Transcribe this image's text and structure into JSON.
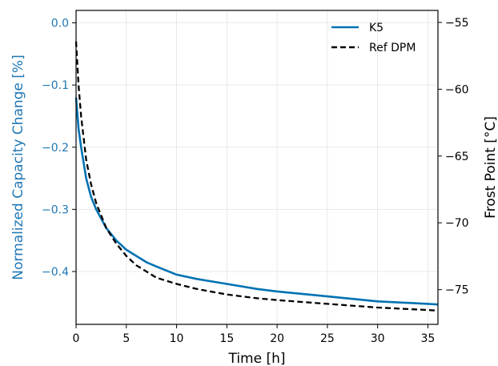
{
  "chart_data": {
    "type": "line",
    "xlabel": "Time [h]",
    "ylabel_left": "Normalized Capacity Change [%]",
    "ylabel_right": "Frost Point [°C]",
    "xlim": [
      0,
      36
    ],
    "ylim_left": [
      -0.485,
      0.02
    ],
    "ylim_right": [
      -77.6,
      -54.1
    ],
    "x_ticks": [
      0,
      5,
      10,
      15,
      20,
      25,
      30,
      35
    ],
    "y_left_ticks": [
      0.0,
      -0.1,
      -0.2,
      -0.3,
      -0.4
    ],
    "y_right_ticks": [
      -55,
      -60,
      -65,
      -70,
      -75
    ],
    "grid": true,
    "legend_position": "top-right",
    "colors": {
      "left_axis": "#1f77b4",
      "k5": "#0072b2",
      "ref": "#000000"
    },
    "series": [
      {
        "name": "K5",
        "axis": "left",
        "style": "solid",
        "x": [
          0,
          0.25,
          0.5,
          1,
          1.5,
          2,
          3,
          4,
          5,
          6,
          7,
          8,
          10,
          12,
          15,
          18,
          20,
          25,
          30,
          35,
          36
        ],
        "y": [
          -0.12,
          -0.17,
          -0.2,
          -0.25,
          -0.28,
          -0.3,
          -0.33,
          -0.35,
          -0.365,
          -0.375,
          -0.385,
          -0.392,
          -0.405,
          -0.412,
          -0.42,
          -0.428,
          -0.432,
          -0.44,
          -0.448,
          -0.452,
          -0.453
        ]
      },
      {
        "name": "Ref DPM",
        "axis": "left",
        "style": "dashed",
        "x": [
          0,
          0.25,
          0.5,
          1,
          1.5,
          2,
          3,
          4,
          5,
          6,
          7,
          8,
          10,
          12,
          15,
          18,
          20,
          25,
          30,
          35,
          36
        ],
        "y": [
          -0.03,
          -0.1,
          -0.15,
          -0.22,
          -0.26,
          -0.29,
          -0.33,
          -0.355,
          -0.375,
          -0.39,
          -0.4,
          -0.41,
          -0.42,
          -0.428,
          -0.437,
          -0.443,
          -0.446,
          -0.452,
          -0.458,
          -0.462,
          -0.463
        ]
      }
    ]
  }
}
